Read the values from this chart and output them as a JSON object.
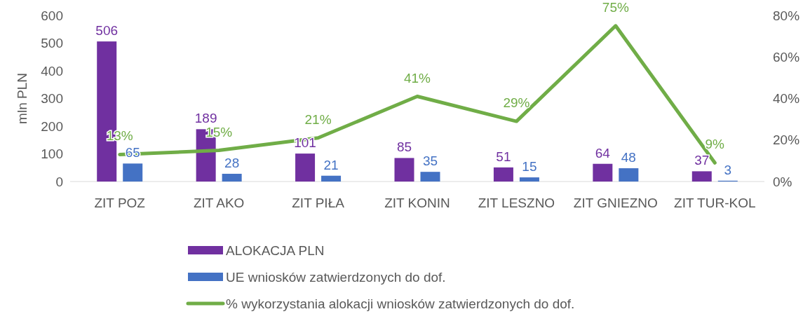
{
  "chart_data": {
    "type": "bar",
    "ylabel": "mln PLN",
    "categories": [
      "ZIT POZ",
      "ZIT AKO",
      "ZIT PIŁA",
      "ZIT KONIN",
      "ZIT LESZNO",
      "ZIT GNIEZNO",
      "ZIT TUR-KOL"
    ],
    "series": [
      {
        "name": "ALOKACJA PLN",
        "color": "#7030a0",
        "values": [
          506,
          189,
          101,
          85,
          51,
          64,
          37
        ],
        "value_labels": [
          "506",
          "189",
          "101",
          "85",
          "51",
          "64",
          "37"
        ]
      },
      {
        "name": "UE wniosków zatwierdzonych do dof.",
        "color": "#4472c4",
        "values": [
          65,
          28,
          21,
          35,
          15,
          48,
          3
        ],
        "value_labels": [
          "65",
          "28",
          "21",
          "35",
          "15",
          "48",
          "3"
        ]
      },
      {
        "name": "% wykorzystania alokacji wniosków zatwierdzonych do dof.",
        "type": "line",
        "axis": "y2",
        "color": "#70ad47",
        "values": [
          13,
          15,
          21,
          41,
          29,
          75,
          9
        ],
        "value_labels": [
          "13%",
          "15%",
          "21%",
          "41%",
          "29%",
          "75%",
          "9%"
        ]
      }
    ],
    "ylim": [
      0,
      600
    ],
    "yticks": [
      0,
      100,
      200,
      300,
      400,
      500,
      600
    ],
    "y2lim": [
      0,
      80
    ],
    "y2ticks": [
      {
        "value": 0,
        "label": "0%"
      },
      {
        "value": 20,
        "label": "20%"
      },
      {
        "value": 40,
        "label": "40%"
      },
      {
        "value": 60,
        "label": "60%"
      },
      {
        "value": 80,
        "label": "80%"
      }
    ],
    "legend": "bottom",
    "grid": false
  }
}
